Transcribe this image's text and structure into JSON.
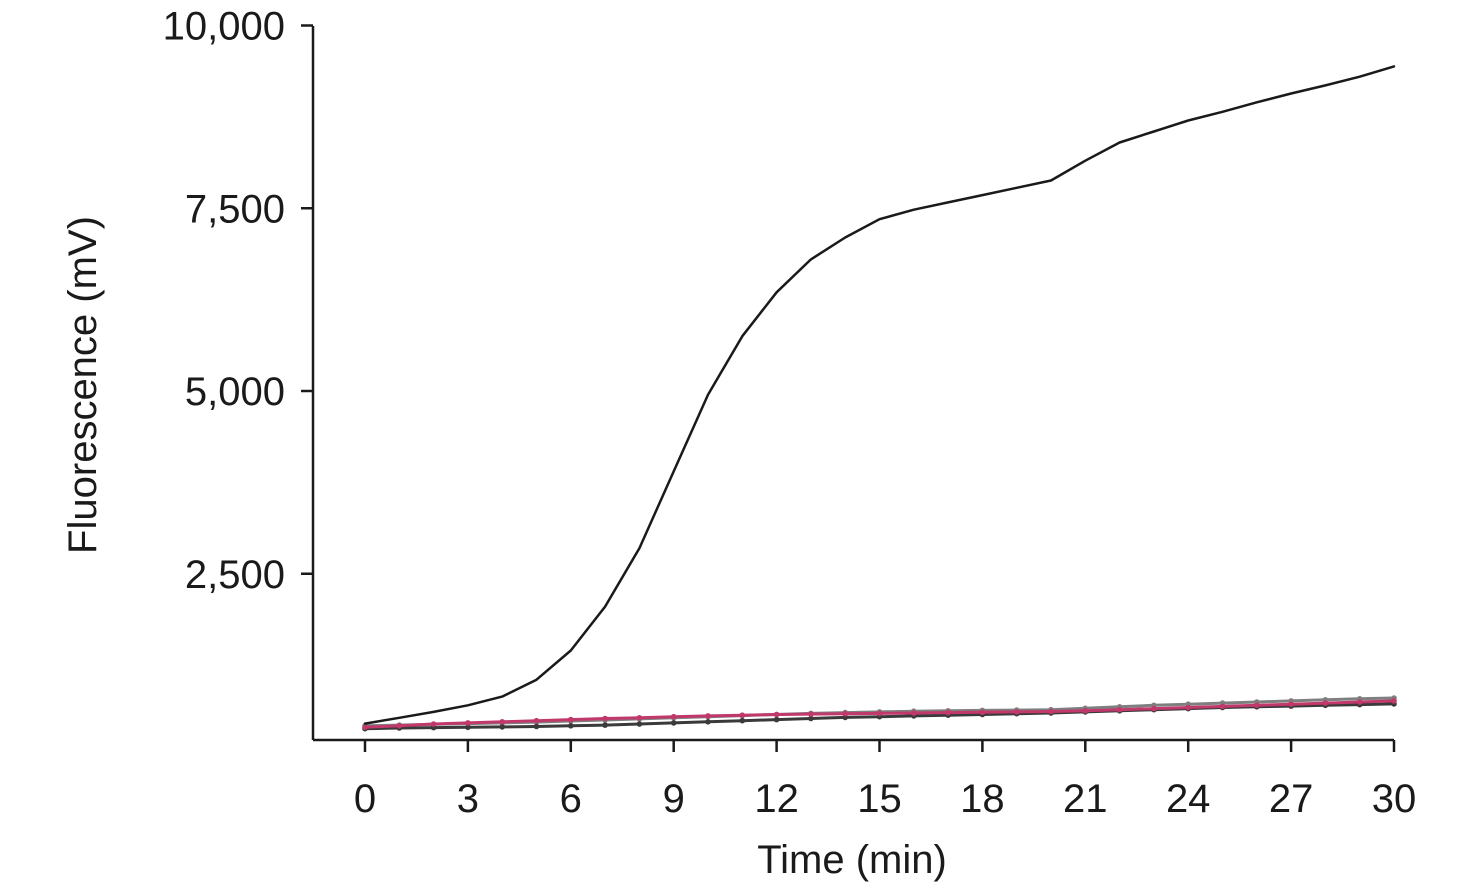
{
  "chart_data": {
    "type": "line",
    "title": "",
    "xlabel": "Time (min)",
    "ylabel": "Fluorescence (mV)",
    "xlim": [
      0,
      30
    ],
    "ylim": [
      0,
      10000
    ],
    "x_ticks": [
      0,
      3,
      6,
      9,
      12,
      15,
      18,
      21,
      24,
      27,
      30
    ],
    "x_tick_labels": [
      "0",
      "3",
      "6",
      "9",
      "12",
      "15",
      "18",
      "21",
      "24",
      "27",
      "30"
    ],
    "y_ticks": [
      2500,
      5000,
      7500,
      10000
    ],
    "y_tick_labels": [
      "2,500",
      "5,000",
      "7,500",
      "10,000"
    ],
    "grid": false,
    "legend": "none",
    "series": [
      {
        "color": "#1a1a1a",
        "marker": "none",
        "x": [
          0,
          1,
          2,
          3,
          4,
          5,
          6,
          7,
          8,
          9,
          10,
          11,
          12,
          13,
          14,
          15,
          16,
          17,
          18,
          19,
          20,
          21,
          22,
          23,
          24,
          25,
          26,
          27,
          28,
          29,
          30
        ],
        "y": [
          450,
          530,
          610,
          700,
          820,
          1050,
          1450,
          2050,
          2850,
          3900,
          4950,
          5750,
          6350,
          6800,
          7100,
          7350,
          7480,
          7580,
          7680,
          7780,
          7880,
          8150,
          8400,
          8550,
          8700,
          8820,
          8950,
          9070,
          9180,
          9300,
          9440
        ]
      },
      {
        "color": "#7f7f7f",
        "marker": "dot",
        "x": [
          0,
          1,
          2,
          3,
          4,
          5,
          6,
          7,
          8,
          9,
          10,
          11,
          12,
          13,
          14,
          15,
          16,
          17,
          18,
          19,
          20,
          21,
          22,
          23,
          24,
          25,
          26,
          27,
          28,
          29,
          30
        ],
        "y": [
          420,
          430,
          440,
          450,
          460,
          470,
          485,
          500,
          515,
          530,
          545,
          560,
          575,
          590,
          600,
          610,
          620,
          625,
          630,
          635,
          640,
          660,
          680,
          700,
          715,
          730,
          745,
          760,
          775,
          790,
          800
        ]
      },
      {
        "color": "#c0396a",
        "marker": "dot",
        "x": [
          0,
          1,
          2,
          3,
          4,
          5,
          6,
          7,
          8,
          9,
          10,
          11,
          12,
          13,
          14,
          15,
          16,
          17,
          18,
          19,
          20,
          21,
          22,
          23,
          24,
          25,
          26,
          27,
          28,
          29,
          30
        ],
        "y": [
          400,
          420,
          445,
          460,
          475,
          490,
          505,
          520,
          530,
          545,
          555,
          565,
          575,
          580,
          585,
          590,
          595,
          600,
          605,
          610,
          615,
          625,
          640,
          655,
          670,
          685,
          700,
          715,
          730,
          745,
          760
        ]
      },
      {
        "color": "#3a3a3a",
        "marker": "dot",
        "x": [
          0,
          1,
          2,
          3,
          4,
          5,
          6,
          7,
          8,
          9,
          10,
          11,
          12,
          13,
          14,
          15,
          16,
          17,
          18,
          19,
          20,
          21,
          22,
          23,
          24,
          25,
          26,
          27,
          28,
          29,
          30
        ],
        "y": [
          380,
          390,
          395,
          400,
          405,
          410,
          420,
          430,
          445,
          460,
          475,
          490,
          505,
          520,
          535,
          545,
          555,
          565,
          575,
          585,
          595,
          610,
          625,
          640,
          655,
          670,
          680,
          690,
          700,
          710,
          720
        ]
      }
    ]
  }
}
